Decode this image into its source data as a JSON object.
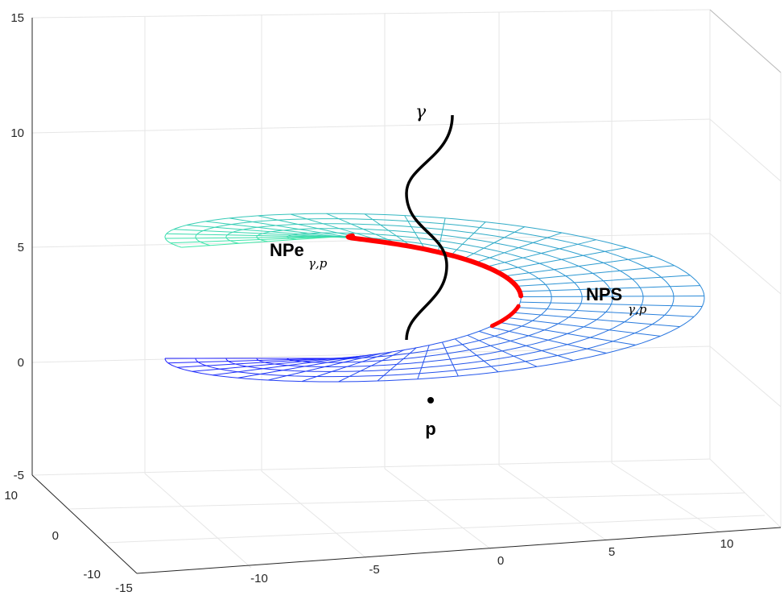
{
  "chart_data": {
    "type": "surface",
    "title": "",
    "xlabel": "",
    "ylabel": "",
    "zlabel": "",
    "xlim": [
      -15,
      12
    ],
    "ylim": [
      -12,
      12
    ],
    "zlim": [
      -5,
      15
    ],
    "grid": true,
    "colormap": [
      "#1f1fff",
      "#2a8fd6",
      "#3ee8a8"
    ],
    "x_ticks": [
      "-15",
      "-10",
      "-5",
      "0",
      "5",
      "10"
    ],
    "y_ticks": [
      "10",
      "0",
      "-10"
    ],
    "z_ticks": [
      "15",
      "10",
      "5",
      "0",
      "-5"
    ],
    "annotations": {
      "gamma": "γ",
      "npe_main": "NPe",
      "npe_sub": "γ,p",
      "nps_main": "NPS",
      "nps_sub": "γ,p",
      "point": "p"
    },
    "series": [
      {
        "kind": "mesh-surface",
        "color_by": "z"
      },
      {
        "kind": "curve",
        "color": "#000000"
      },
      {
        "kind": "curve-thick",
        "color": "#ff0000"
      },
      {
        "kind": "point",
        "color": "#000000"
      }
    ]
  }
}
